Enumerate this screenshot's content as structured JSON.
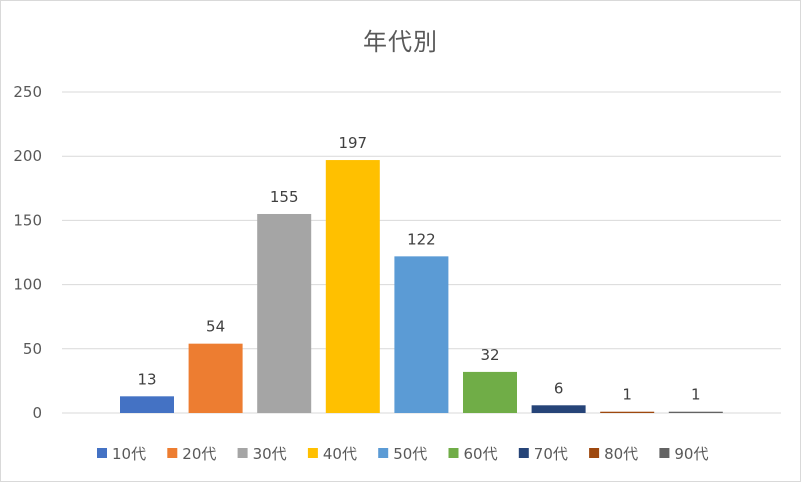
{
  "chart_data": {
    "type": "bar",
    "title": "年代別",
    "categories": [
      "10代",
      "20代",
      "30代",
      "40代",
      "50代",
      "60代",
      "70代",
      "80代",
      "90代"
    ],
    "values": [
      13,
      54,
      155,
      197,
      122,
      32,
      6,
      1,
      1
    ],
    "colors": [
      "#4472c4",
      "#ed7d31",
      "#a5a5a5",
      "#ffc000",
      "#5b9bd5",
      "#70ad47",
      "#264478",
      "#9e480e",
      "#636363"
    ],
    "ylim": [
      0,
      250
    ],
    "yticks": [
      0,
      50,
      100,
      150,
      200,
      250
    ],
    "grid": true,
    "legend": "bottom",
    "data_labels": true
  }
}
